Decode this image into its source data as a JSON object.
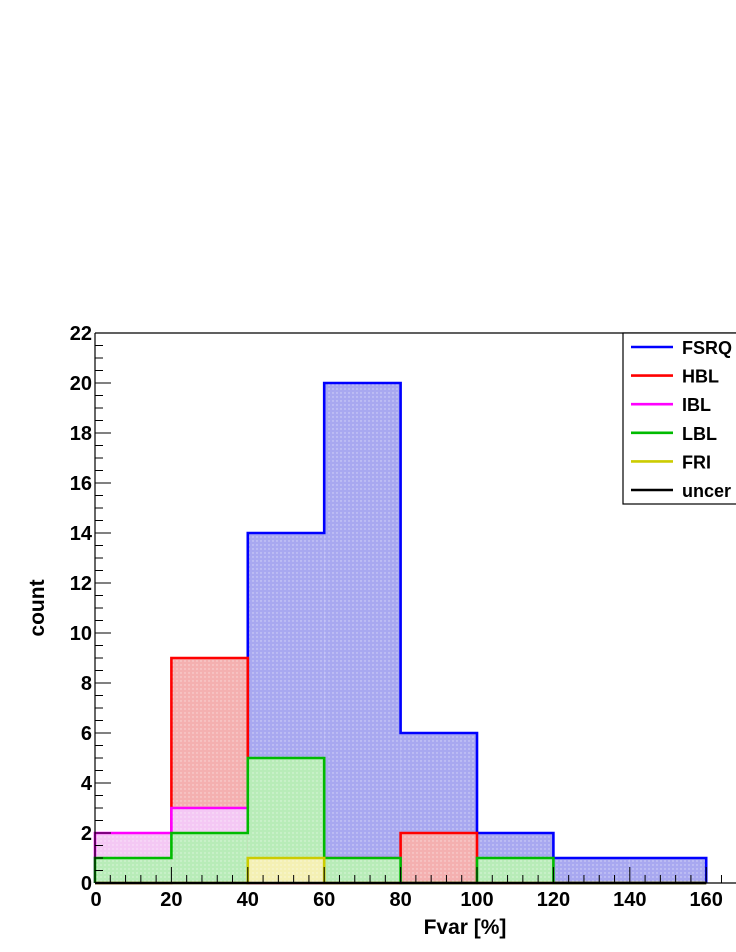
{
  "chart_data": {
    "type": "histogram",
    "xlabel": "Fvar [%]",
    "ylabel": "count",
    "xlim": [
      0,
      170
    ],
    "ylim": [
      0,
      22
    ],
    "x_ticks": [
      "0",
      "20",
      "40",
      "60",
      "80",
      "100",
      "120",
      "140",
      "160"
    ],
    "y_ticks": [
      "0",
      "2",
      "4",
      "6",
      "8",
      "10",
      "12",
      "14",
      "16",
      "18",
      "20",
      "22"
    ],
    "bin_edges": [
      0,
      20,
      40,
      60,
      80,
      100,
      120,
      140,
      160
    ],
    "legend_position": "top-right",
    "series": [
      {
        "name": "FSRQ",
        "color": "#0000ff",
        "fill": "#a8a8f0",
        "values": [
          1,
          2,
          14,
          20,
          6,
          2,
          1,
          1
        ]
      },
      {
        "name": "HBL",
        "color": "#ff0000",
        "fill": "#f4b0b0",
        "values": [
          0,
          9,
          0,
          0,
          2,
          0,
          0,
          0
        ]
      },
      {
        "name": "IBL",
        "color": "#ff00ff",
        "fill": "#f4c8f4",
        "values": [
          2,
          3,
          3,
          1,
          0,
          0,
          0,
          0
        ]
      },
      {
        "name": "LBL",
        "color": "#00bb00",
        "fill": "#b8ecb8",
        "values": [
          1,
          2,
          5,
          1,
          0,
          1,
          0,
          0
        ]
      },
      {
        "name": "FRI",
        "color": "#cccc00",
        "fill": "#f4f0b4",
        "values": [
          0,
          0,
          1,
          0,
          0,
          0,
          0,
          0
        ]
      },
      {
        "name": "uncertain",
        "color": "#000000",
        "fill": "none",
        "values": [
          0,
          0,
          0,
          0,
          0,
          0,
          0,
          0
        ]
      }
    ],
    "legend_labels": [
      "FSRQ",
      "HBL",
      "IBL",
      "LBL",
      "FRI",
      "uncer"
    ]
  }
}
